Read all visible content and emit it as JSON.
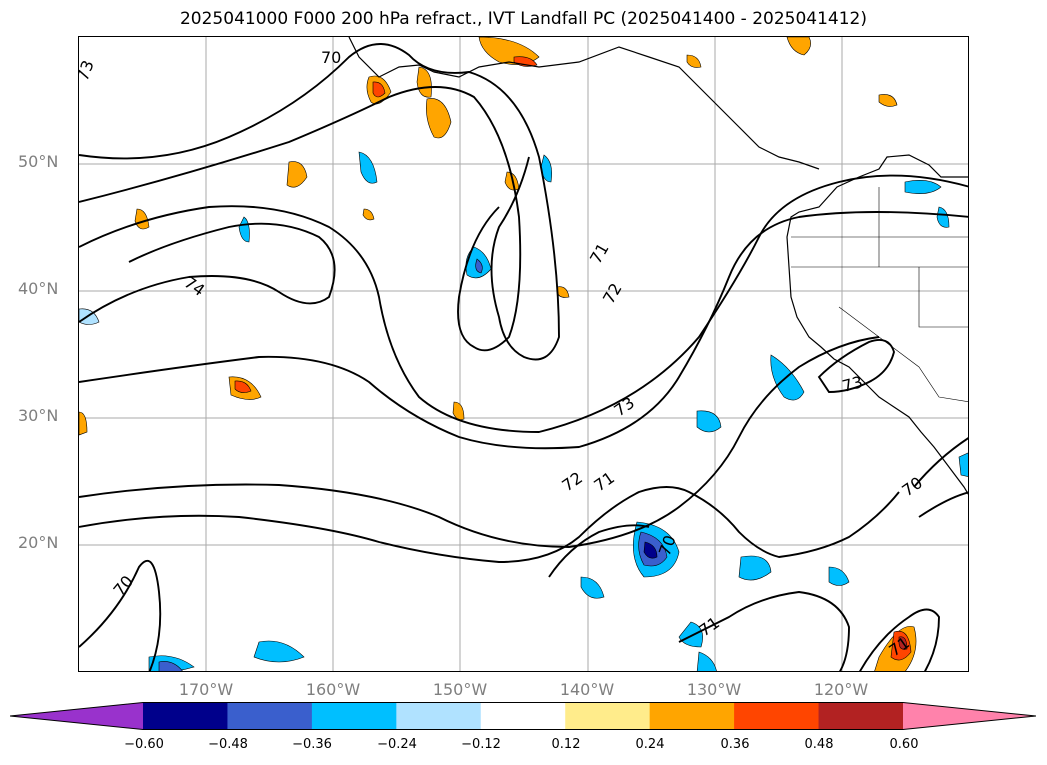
{
  "title": "2025041000 F000 200 hPa refract., IVT Landfall PC (2025041400 - 2025041412)",
  "lat_labels": [
    "50°N",
    "40°N",
    "30°N",
    "20°N"
  ],
  "lon_labels": [
    "170°W",
    "160°W",
    "150°W",
    "140°W",
    "130°W",
    "120°W"
  ],
  "contour_labels": [
    "70",
    "73",
    "74",
    "71",
    "72",
    "73",
    "72",
    "71",
    "70",
    "71",
    "73",
    "70",
    "71",
    "70"
  ],
  "colorbar": {
    "ticks": [
      "−0.60",
      "−0.48",
      "−0.36",
      "−0.24",
      "−0.12",
      "0.12",
      "0.24",
      "0.36",
      "0.48",
      "0.60"
    ],
    "colors": [
      "#9932cc",
      "#00008b",
      "#3a5fcd",
      "#00bfff",
      "#b0e2ff",
      "#ffffff",
      "#ffec8b",
      "#ffa500",
      "#ff4500",
      "#b22222",
      "#ff82ab"
    ],
    "extend": "both"
  },
  "colors": {
    "coast": "#000000",
    "grid": "#aaaaaa",
    "tick_label": "#7f7f7f"
  }
}
